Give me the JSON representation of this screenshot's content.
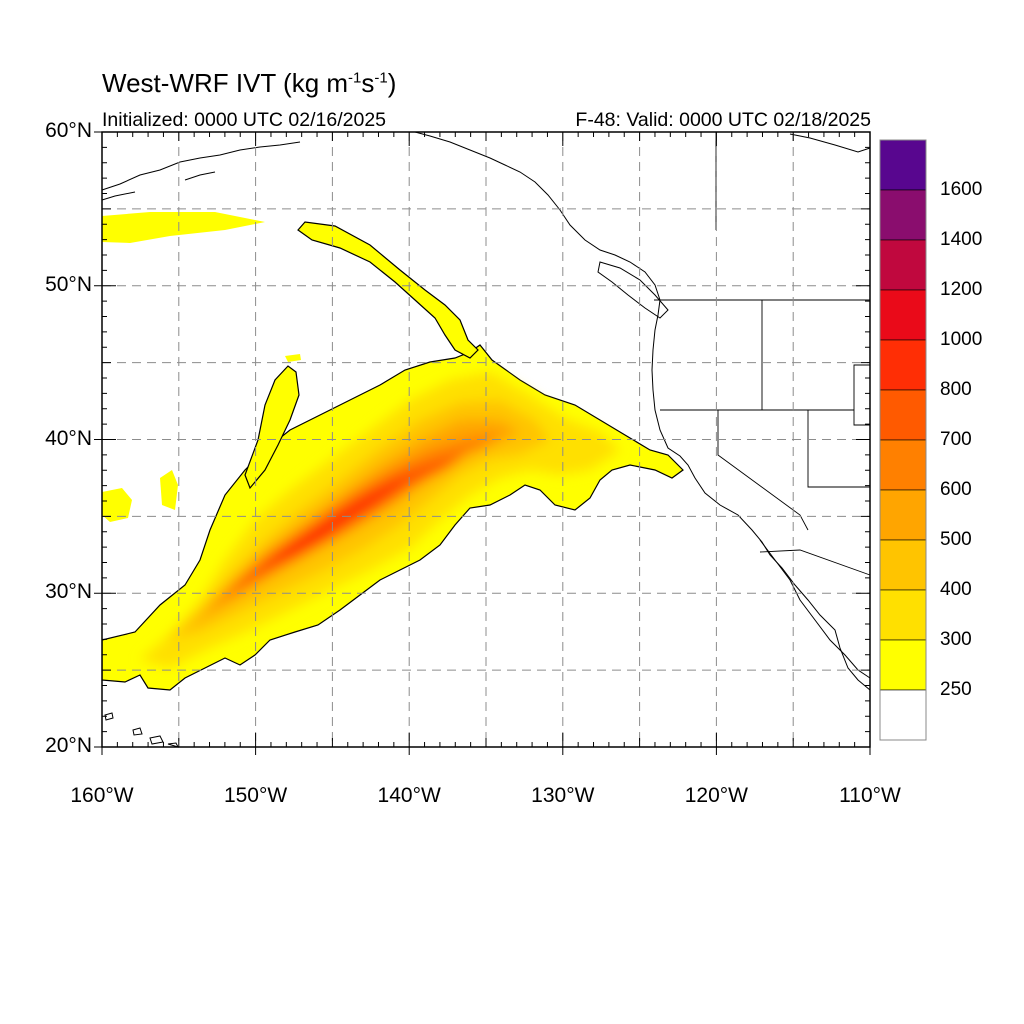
{
  "header": {
    "title_main": "West-WRF IVT (kg m",
    "title_exp1": "-1",
    "title_mid": "s",
    "title_exp2": "-1",
    "title_end": ")",
    "initialized": "Initialized: 0000 UTC 02/16/2025",
    "valid": "F-48: Valid: 0000 UTC 02/18/2025"
  },
  "axes": {
    "lat_labels": [
      "60°N",
      "50°N",
      "40°N",
      "30°N",
      "20°N"
    ],
    "lon_labels": [
      "160°W",
      "150°W",
      "140°W",
      "130°W",
      "120°W",
      "110°W"
    ],
    "lat_range": [
      20,
      60
    ],
    "lon_range": [
      -160,
      -110
    ],
    "grid": "dashed, every 5°"
  },
  "colorbar": {
    "labels": [
      "1600",
      "1400",
      "1200",
      "1000",
      "800",
      "700",
      "600",
      "500",
      "400",
      "300",
      "250"
    ],
    "colors": [
      "#58068f",
      "#8a0d6e",
      "#c0083e",
      "#ea0a19",
      "#ff2e05",
      "#ff5a00",
      "#ff8000",
      "#ffa500",
      "#ffc400",
      "#ffe000",
      "#ffff00",
      "#ffffff"
    ]
  },
  "colors": {
    "land_line": "#000000",
    "grid": "#8c8c8c"
  }
}
